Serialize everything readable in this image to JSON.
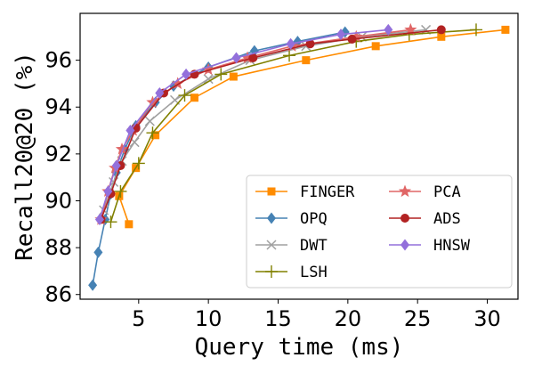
{
  "chart_data": {
    "type": "line",
    "title": "",
    "xlabel": "Query time (ms)",
    "ylabel": "Recall20@20 (%)",
    "xlim": [
      0.8,
      32.2
    ],
    "ylim": [
      85.8,
      98.0
    ],
    "xticks": [
      5,
      10,
      15,
      20,
      25,
      30
    ],
    "yticks": [
      86,
      88,
      90,
      92,
      94,
      96
    ],
    "xtick_labels": [
      "5",
      "10",
      "15",
      "20",
      "25",
      "30"
    ],
    "ytick_labels": [
      "86",
      "88",
      "90",
      "92",
      "94",
      "96"
    ],
    "grid": false,
    "legend_position": "lower-right",
    "series": [
      {
        "name": "FINGER",
        "color": "#ff8c00",
        "marker": "square",
        "x": [
          4.3,
          3.6,
          4.8,
          6.2,
          9.0,
          11.8,
          17.0,
          22.0,
          26.7,
          31.3
        ],
        "y": [
          89.0,
          90.2,
          91.4,
          92.8,
          94.4,
          95.3,
          96.0,
          96.6,
          97.0,
          97.3
        ]
      },
      {
        "name": "OPQ",
        "color": "#4682b4",
        "marker": "diamond",
        "x": [
          1.7,
          2.1,
          2.6,
          3.0,
          3.4,
          4.0,
          4.8,
          6.2,
          7.5,
          10.0,
          13.3,
          16.4,
          19.8
        ],
        "y": [
          86.4,
          87.8,
          89.2,
          90.3,
          91.2,
          92.2,
          93.2,
          94.2,
          94.9,
          95.7,
          96.4,
          96.8,
          97.2
        ]
      },
      {
        "name": "DWT",
        "color": "#a0a0a0",
        "marker": "x",
        "x": [
          2.5,
          3.2,
          3.8,
          4.7,
          5.8,
          7.6,
          10.0,
          13.0,
          17.0,
          21.0,
          25.6
        ],
        "y": [
          89.6,
          90.8,
          91.7,
          92.5,
          93.4,
          94.3,
          95.2,
          96.0,
          96.6,
          97.0,
          97.3
        ]
      },
      {
        "name": "LSH",
        "color": "#808000",
        "marker": "plus",
        "x": [
          3.0,
          3.7,
          5.0,
          6.0,
          8.3,
          10.9,
          15.8,
          20.6,
          24.4,
          29.2
        ],
        "y": [
          89.1,
          90.4,
          91.6,
          92.9,
          94.5,
          95.4,
          96.2,
          96.8,
          97.1,
          97.3
        ]
      },
      {
        "name": "PCA",
        "color": "#e06666",
        "marker": "star",
        "x": [
          2.3,
          2.8,
          3.3,
          3.8,
          4.6,
          6.0,
          7.8,
          10.0,
          12.8,
          16.0,
          20.6,
          24.5
        ],
        "y": [
          89.2,
          90.4,
          91.4,
          92.2,
          93.0,
          94.2,
          95.0,
          95.6,
          96.1,
          96.6,
          97.0,
          97.3
        ]
      },
      {
        "name": "ADS",
        "color": "#b22222",
        "marker": "circle",
        "x": [
          2.3,
          3.0,
          3.7,
          4.8,
          6.8,
          9.0,
          13.2,
          17.3,
          20.3,
          26.7
        ],
        "y": [
          89.2,
          90.3,
          91.5,
          93.1,
          94.6,
          95.4,
          96.1,
          96.7,
          96.9,
          97.3
        ]
      },
      {
        "name": "HNSW",
        "color": "#9370db",
        "marker": "diamond",
        "x": [
          2.2,
          2.8,
          3.4,
          4.4,
          6.5,
          8.4,
          12.0,
          15.9,
          19.5,
          22.9
        ],
        "y": [
          89.2,
          90.4,
          91.5,
          93.0,
          94.6,
          95.4,
          96.1,
          96.7,
          97.1,
          97.3
        ]
      }
    ]
  }
}
